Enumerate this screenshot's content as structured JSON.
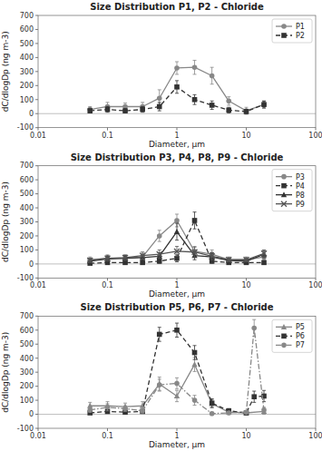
{
  "chart_data": [
    {
      "type": "line",
      "title": "Size Distribution P1, P2 - Chloride",
      "x_label": "Diameter, μm",
      "y_label": "dC/dlogDp (ng m-3)",
      "log": "x",
      "xlim": [
        0.01,
        100
      ],
      "xticks": [
        0.01,
        0.1,
        1,
        10,
        100
      ],
      "ylim": [
        -100,
        700
      ],
      "yticks": [
        -100,
        0,
        100,
        200,
        300,
        400,
        500,
        600,
        700
      ],
      "reference_lines": [
        0
      ],
      "grid": false,
      "legend": "upper right",
      "series": [
        {
          "name": "P1",
          "color": "#888888",
          "marker": "circle",
          "line_style": "solid",
          "x": [
            0.056,
            0.1,
            0.18,
            0.32,
            0.56,
            1.0,
            1.8,
            3.2,
            5.6,
            10.0,
            18.0
          ],
          "values": [
            30,
            50,
            50,
            50,
            110,
            325,
            330,
            270,
            90,
            20,
            65
          ],
          "errors": [
            20,
            30,
            25,
            30,
            60,
            45,
            50,
            60,
            30,
            25,
            25
          ]
        },
        {
          "name": "P2",
          "color": "#333333",
          "marker": "square",
          "line_style": "dashed",
          "x": [
            0.056,
            0.1,
            0.18,
            0.32,
            0.56,
            1.0,
            1.8,
            3.2,
            5.6,
            10.0,
            18.0
          ],
          "values": [
            20,
            30,
            20,
            30,
            50,
            190,
            100,
            60,
            25,
            15,
            65
          ],
          "errors": [
            15,
            20,
            15,
            20,
            30,
            45,
            35,
            30,
            20,
            15,
            25
          ]
        }
      ]
    },
    {
      "type": "line",
      "title": "Size Distribution P3, P4, P8, P9 - Chloride",
      "x_label": "Diameter, μm",
      "y_label": "dC/dlogDp (ng m-3)",
      "log": "x",
      "xlim": [
        0.01,
        100
      ],
      "xticks": [
        0.01,
        0.1,
        1,
        10,
        100
      ],
      "ylim": [
        -100,
        700
      ],
      "yticks": [
        -100,
        0,
        100,
        200,
        300,
        400,
        500,
        600,
        700
      ],
      "reference_lines": [
        0
      ],
      "grid": false,
      "legend": "upper right",
      "series": [
        {
          "name": "P3",
          "color": "#888888",
          "marker": "circle",
          "line_style": "solid",
          "x": [
            0.056,
            0.1,
            0.18,
            0.32,
            0.56,
            1.0,
            1.8,
            3.2,
            5.6,
            10.0,
            18.0
          ],
          "values": [
            30,
            40,
            40,
            50,
            200,
            310,
            90,
            70,
            30,
            30,
            50
          ],
          "errors": [
            20,
            25,
            20,
            25,
            40,
            45,
            35,
            30,
            20,
            20,
            20
          ]
        },
        {
          "name": "P4",
          "color": "#333333",
          "marker": "square",
          "line_style": "dashed",
          "x": [
            0.056,
            0.1,
            0.18,
            0.32,
            0.56,
            1.0,
            1.8,
            3.2,
            5.6,
            10.0,
            18.0
          ],
          "values": [
            5,
            10,
            10,
            10,
            20,
            40,
            310,
            20,
            10,
            10,
            10
          ],
          "errors": [
            5,
            8,
            8,
            8,
            15,
            25,
            60,
            15,
            8,
            8,
            8
          ]
        },
        {
          "name": "P8",
          "color": "#333333",
          "marker": "triangle",
          "line_style": "solid",
          "x": [
            0.056,
            0.1,
            0.18,
            0.32,
            0.56,
            1.0,
            1.8,
            3.2,
            5.6,
            10.0,
            18.0
          ],
          "values": [
            20,
            35,
            40,
            45,
            55,
            230,
            60,
            50,
            25,
            20,
            70
          ],
          "errors": [
            15,
            20,
            20,
            20,
            25,
            60,
            30,
            25,
            15,
            15,
            25
          ]
        },
        {
          "name": "P9",
          "color": "#555555",
          "marker": "x",
          "line_style": "solid",
          "x": [
            0.056,
            0.1,
            0.18,
            0.32,
            0.56,
            1.0,
            1.8,
            3.2,
            5.6,
            10.0,
            18.0
          ],
          "values": [
            25,
            40,
            45,
            60,
            70,
            90,
            85,
            55,
            30,
            30,
            75
          ],
          "errors": [
            15,
            20,
            20,
            25,
            30,
            35,
            35,
            25,
            15,
            15,
            25
          ]
        }
      ]
    },
    {
      "type": "line",
      "title": "Size Distribution P5, P6, P7 - Chloride",
      "x_label": "Diameter, μm",
      "y_label": "dC/dlogDp (ng m-3)",
      "log": "x",
      "xlim": [
        0.01,
        100
      ],
      "xticks": [
        0.01,
        0.1,
        1,
        10,
        100
      ],
      "ylim": [
        -100,
        700
      ],
      "yticks": [
        -100,
        0,
        100,
        200,
        300,
        400,
        500,
        600,
        700
      ],
      "reference_lines": [
        0
      ],
      "grid": false,
      "legend": "upper right",
      "series": [
        {
          "name": "P5",
          "color": "#888888",
          "marker": "triangle",
          "line_style": "solid",
          "x": [
            0.056,
            0.1,
            0.18,
            0.32,
            0.56,
            1.0,
            1.8,
            3.2,
            5.6,
            10.0,
            18.0
          ],
          "values": [
            60,
            60,
            55,
            60,
            215,
            130,
            355,
            75,
            15,
            10,
            20
          ],
          "errors": [
            25,
            30,
            25,
            30,
            50,
            40,
            50,
            30,
            15,
            15,
            20
          ]
        },
        {
          "name": "P6",
          "color": "#333333",
          "marker": "square",
          "line_style": "dashed",
          "x": [
            0.056,
            0.1,
            0.18,
            0.32,
            0.56,
            1.0,
            1.8,
            3.2,
            5.6,
            10.0,
            13.0,
            18.0
          ],
          "values": [
            10,
            20,
            15,
            20,
            570,
            600,
            440,
            80,
            25,
            10,
            125,
            130
          ],
          "errors": [
            8,
            12,
            10,
            12,
            50,
            50,
            50,
            30,
            15,
            10,
            40,
            40
          ]
        },
        {
          "name": "P7",
          "color": "#888888",
          "marker": "circle",
          "line_style": "dashdot",
          "x": [
            0.056,
            0.1,
            0.18,
            0.32,
            0.56,
            1.0,
            1.8,
            3.2,
            5.6,
            10.0,
            13.0,
            18.0
          ],
          "values": [
            30,
            50,
            40,
            25,
            210,
            220,
            100,
            5,
            10,
            15,
            615,
            30
          ],
          "errors": [
            15,
            25,
            20,
            15,
            40,
            40,
            35,
            10,
            8,
            10,
            60,
            20
          ]
        }
      ]
    }
  ]
}
